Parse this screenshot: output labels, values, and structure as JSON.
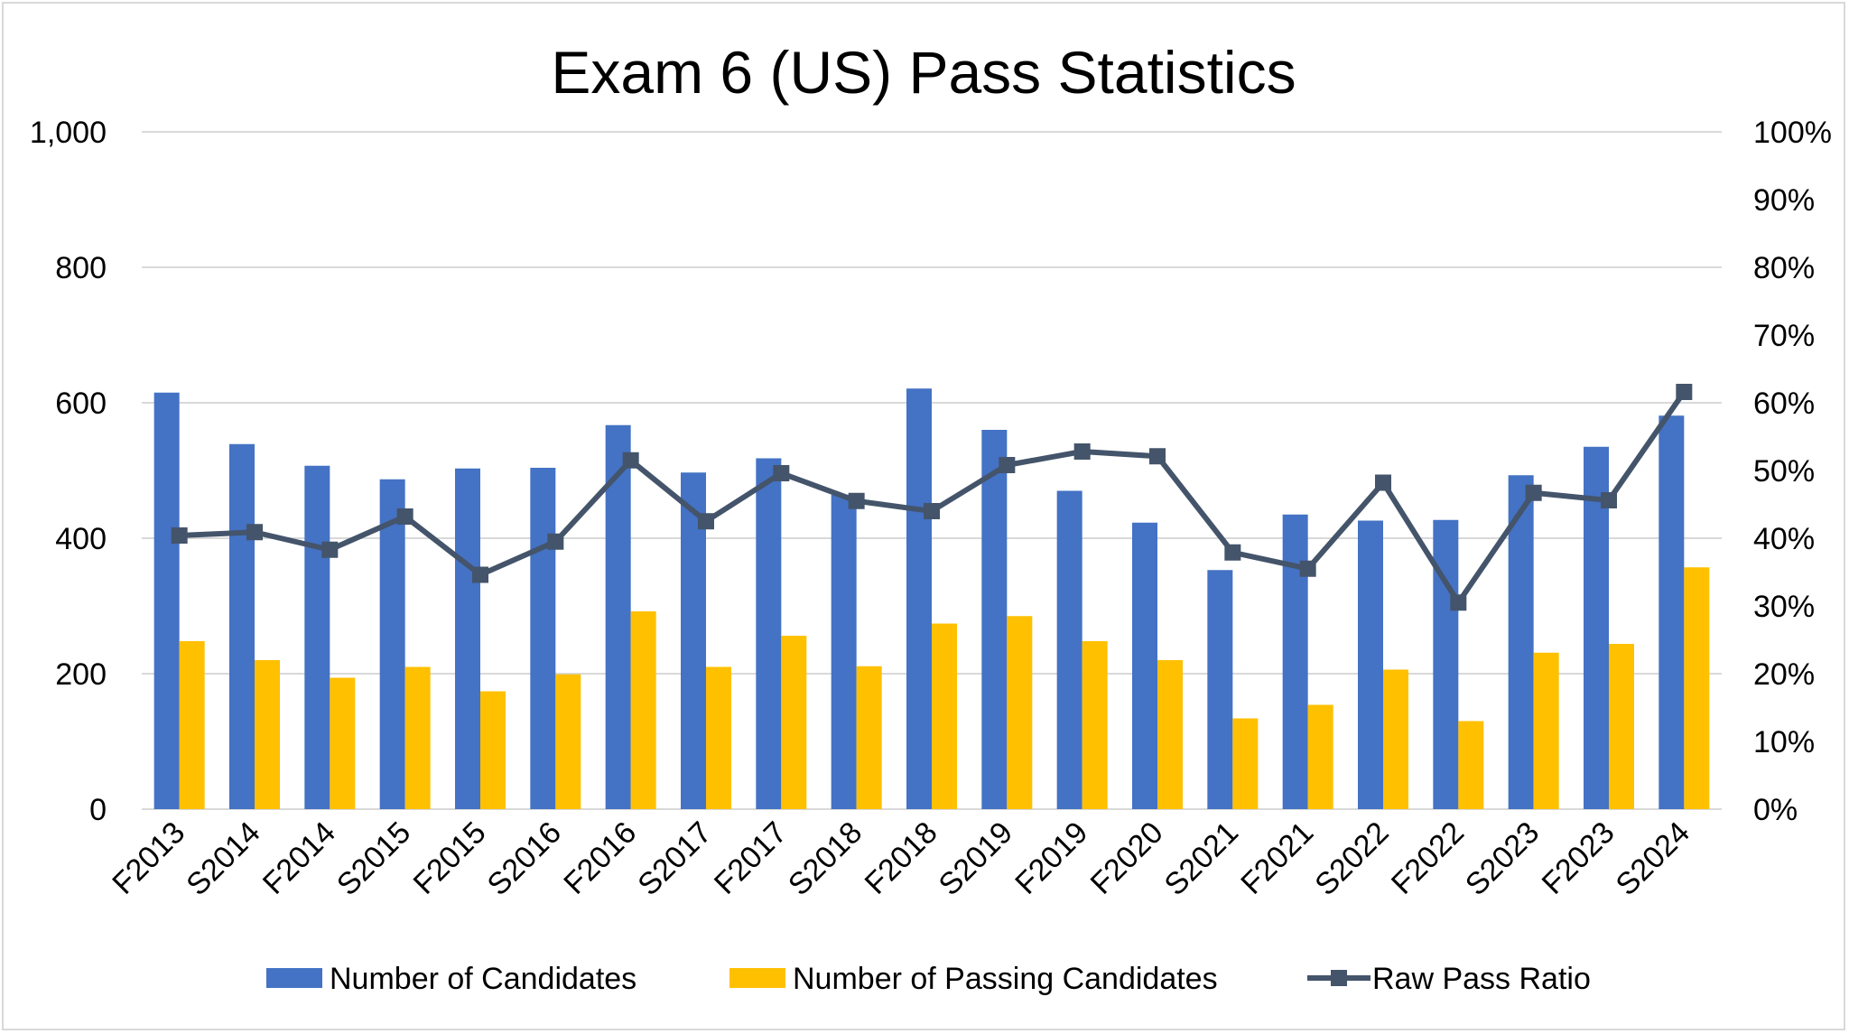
{
  "chart_data": {
    "type": "bar+line",
    "title": "Exam 6 (US) Pass Statistics",
    "categories": [
      "F2013",
      "S2014",
      "F2014",
      "S2015",
      "F2015",
      "S2016",
      "F2016",
      "S2017",
      "F2017",
      "S2018",
      "F2018",
      "S2019",
      "F2019",
      "F2020",
      "S2021",
      "F2021",
      "S2022",
      "F2022",
      "S2023",
      "F2023",
      "S2024"
    ],
    "series": [
      {
        "name": "Number of Candidates",
        "type": "bar",
        "axis": "left",
        "color": "#4472c4",
        "values": [
          615,
          539,
          507,
          487,
          503,
          504,
          567,
          497,
          518,
          464,
          621,
          560,
          470,
          423,
          353,
          435,
          426,
          427,
          493,
          535,
          581
        ]
      },
      {
        "name": "Number of Passing Candidates",
        "type": "bar",
        "axis": "left",
        "color": "#ffc000",
        "values": [
          248,
          220,
          194,
          210,
          174,
          199,
          292,
          210,
          256,
          211,
          274,
          285,
          248,
          220,
          134,
          154,
          206,
          130,
          231,
          244,
          357
        ]
      },
      {
        "name": "Raw Pass Ratio",
        "type": "line",
        "axis": "right",
        "color": "#44546a",
        "marker": "square",
        "values": [
          40.4,
          40.9,
          38.3,
          43.2,
          34.6,
          39.5,
          51.5,
          42.5,
          49.6,
          45.5,
          44.0,
          50.8,
          52.8,
          52.1,
          37.9,
          35.5,
          48.2,
          30.5,
          46.7,
          45.6,
          61.6
        ]
      }
    ],
    "y_left": {
      "min": 0,
      "max": 1000,
      "ticks": [
        0,
        200,
        400,
        600,
        800,
        1000
      ],
      "tick_labels": [
        "0",
        "200",
        "400",
        "600",
        "800",
        "1,000"
      ]
    },
    "y_right": {
      "min": 0,
      "max": 100,
      "unit": "%",
      "ticks": [
        0,
        10,
        20,
        30,
        40,
        50,
        60,
        70,
        80,
        90,
        100
      ],
      "tick_labels": [
        "0%",
        "10%",
        "20%",
        "30%",
        "40%",
        "50%",
        "60%",
        "70%",
        "80%",
        "90%",
        "100%"
      ]
    },
    "grid": true,
    "legend": "bottom",
    "x_label_rotation": -45
  }
}
